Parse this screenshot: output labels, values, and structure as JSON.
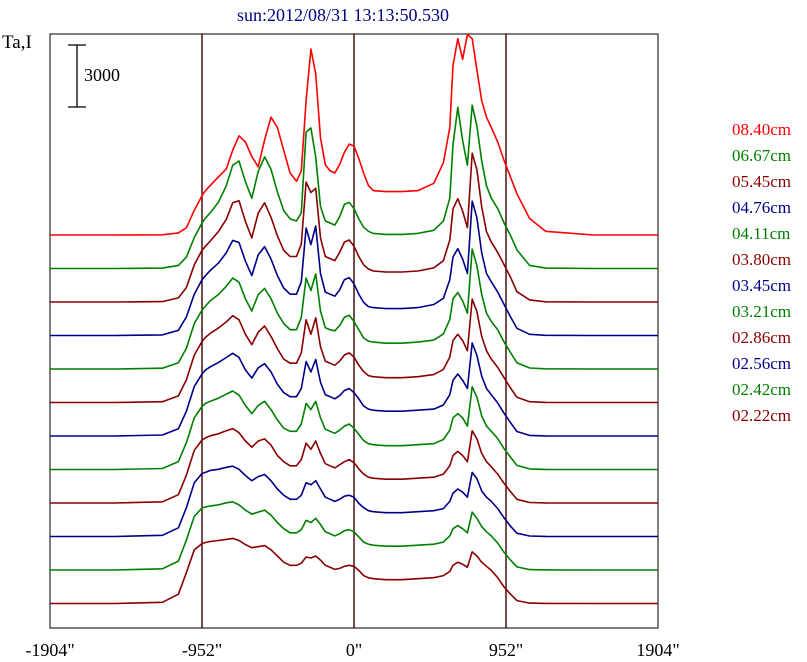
{
  "chart_data": {
    "type": "line",
    "title": "sun:2012/08/31 13:13:50.530",
    "ylabel": "Ta,I",
    "scale_bar_label": "3000",
    "scale_bar_value": 3000,
    "x_ticks": [
      "-1904\"",
      "-952\"",
      "0\"",
      "952\"",
      "1904\""
    ],
    "x_tick_values": [
      -1904,
      -952,
      0,
      952,
      1904
    ],
    "xlim": [
      -1904,
      1904
    ],
    "vertical_markers": [
      -952,
      0,
      952
    ],
    "grid": false,
    "legend_position": "right",
    "profile_x": [
      -1904,
      -1500,
      -1200,
      -1100,
      -1050,
      -1000,
      -952,
      -930,
      -900,
      -850,
      -800,
      -760,
      -720,
      -680,
      -640,
      -600,
      -560,
      -520,
      -480,
      -440,
      -400,
      -360,
      -330,
      -300,
      -270,
      -240,
      -210,
      -180,
      -150,
      -120,
      -90,
      -60,
      -30,
      0,
      30,
      60,
      90,
      120,
      200,
      300,
      400,
      500,
      560,
      600,
      620,
      650,
      680,
      710,
      740,
      770,
      800,
      830,
      860,
      900,
      940,
      980,
      1020,
      1100,
      1200,
      1500,
      1904
    ],
    "series": [
      {
        "name": "08.40cm",
        "color": "#ff0000",
        "offset": 0,
        "values": [
          0,
          0,
          10,
          100,
          350,
          1200,
          1900,
          2150,
          2400,
          2800,
          3200,
          4100,
          4800,
          4500,
          3800,
          3300,
          4600,
          5700,
          5200,
          4100,
          3000,
          2600,
          3100,
          6500,
          9000,
          7800,
          4700,
          3400,
          3100,
          3000,
          3400,
          4000,
          4400,
          4300,
          3700,
          3000,
          2400,
          2150,
          2100,
          2100,
          2150,
          2500,
          3500,
          5200,
          8200,
          9500,
          8500,
          9700,
          9500,
          8000,
          6500,
          5700,
          5200,
          4500,
          3600,
          2800,
          2000,
          800,
          180,
          0,
          0
        ]
      },
      {
        "name": "06.67cm",
        "color": "#008000",
        "offset": 1,
        "values": [
          0,
          0,
          20,
          150,
          550,
          1500,
          2200,
          2450,
          2700,
          3200,
          4000,
          5000,
          5200,
          4200,
          3400,
          4700,
          5400,
          4800,
          3700,
          2800,
          2400,
          2300,
          2700,
          6600,
          6800,
          5400,
          3000,
          2300,
          2200,
          2100,
          2500,
          3100,
          3200,
          2900,
          2400,
          2000,
          1800,
          1700,
          1650,
          1650,
          1700,
          1850,
          2300,
          3400,
          6000,
          7800,
          6200,
          5000,
          7900,
          6900,
          5200,
          4000,
          3400,
          2900,
          2200,
          1600,
          900,
          150,
          20,
          0,
          0
        ]
      },
      {
        "name": "05.45cm",
        "color": "#8b0000",
        "offset": 2,
        "values": [
          0,
          0,
          20,
          200,
          700,
          1800,
          2500,
          2700,
          2950,
          3400,
          4000,
          4800,
          4900,
          3900,
          3100,
          4300,
          4800,
          4100,
          3200,
          2500,
          2200,
          2200,
          2800,
          5800,
          5300,
          5500,
          3100,
          2200,
          2100,
          2000,
          2400,
          2900,
          3000,
          2700,
          2200,
          1800,
          1600,
          1500,
          1450,
          1450,
          1500,
          1650,
          2000,
          3000,
          4500,
          5000,
          4400,
          3600,
          7200,
          6400,
          4600,
          3400,
          2900,
          2400,
          1800,
          1200,
          500,
          100,
          10,
          0,
          0
        ]
      },
      {
        "name": "04.76cm",
        "color": "#00008b",
        "offset": 3,
        "values": [
          0,
          0,
          30,
          250,
          900,
          2000,
          2700,
          2900,
          3150,
          3500,
          4000,
          4600,
          4500,
          3600,
          2900,
          3900,
          4300,
          3700,
          2900,
          2300,
          2000,
          2000,
          2600,
          5200,
          4400,
          5300,
          3000,
          2100,
          2000,
          1900,
          2200,
          2700,
          2800,
          2500,
          2000,
          1600,
          1400,
          1350,
          1300,
          1300,
          1350,
          1500,
          1800,
          2700,
          3800,
          4200,
          3700,
          3000,
          6500,
          5700,
          4000,
          3000,
          2600,
          2100,
          1500,
          900,
          350,
          60,
          10,
          0,
          0
        ]
      },
      {
        "name": "04.11cm",
        "color": "#008000",
        "offset": 4,
        "values": [
          0,
          0,
          40,
          300,
          1000,
          2200,
          2850,
          3050,
          3300,
          3600,
          4000,
          4400,
          4200,
          3400,
          2800,
          3600,
          3900,
          3400,
          2700,
          2200,
          1900,
          1900,
          2500,
          4400,
          3800,
          4600,
          2800,
          2000,
          1900,
          1850,
          2100,
          2500,
          2600,
          2300,
          1900,
          1500,
          1350,
          1300,
          1250,
          1250,
          1300,
          1400,
          1700,
          2400,
          3400,
          3700,
          3300,
          2700,
          5800,
          5000,
          3600,
          2700,
          2300,
          1900,
          1300,
          800,
          300,
          50,
          10,
          0,
          0
        ]
      },
      {
        "name": "03.80cm",
        "color": "#8b0000",
        "offset": 5,
        "values": [
          0,
          0,
          40,
          320,
          1100,
          2300,
          2950,
          3150,
          3350,
          3600,
          3900,
          4200,
          4000,
          3300,
          2800,
          3400,
          3700,
          3200,
          2600,
          2100,
          1900,
          1900,
          2400,
          4000,
          3300,
          4100,
          2700,
          2000,
          1900,
          1800,
          2000,
          2300,
          2400,
          2200,
          1800,
          1500,
          1300,
          1250,
          1200,
          1200,
          1250,
          1350,
          1600,
          2200,
          3000,
          3300,
          3000,
          2500,
          5000,
          4400,
          3200,
          2500,
          2100,
          1700,
          1200,
          700,
          250,
          40,
          5,
          0,
          0
        ]
      },
      {
        "name": "03.45cm",
        "color": "#00008b",
        "offset": 6,
        "values": [
          0,
          0,
          50,
          350,
          1200,
          2400,
          3000,
          3200,
          3350,
          3550,
          3800,
          4000,
          3800,
          3200,
          2800,
          3300,
          3500,
          3100,
          2500,
          2100,
          1900,
          1900,
          2300,
          3600,
          3100,
          3700,
          2600,
          2000,
          1900,
          1800,
          1950,
          2200,
          2300,
          2100,
          1800,
          1450,
          1300,
          1250,
          1200,
          1200,
          1250,
          1300,
          1500,
          2000,
          2700,
          3000,
          2700,
          2300,
          4500,
          3900,
          2900,
          2300,
          2000,
          1600,
          1100,
          650,
          220,
          30,
          5,
          0,
          0
        ]
      },
      {
        "name": "03.21cm",
        "color": "#008000",
        "offset": 7,
        "values": [
          0,
          0,
          50,
          380,
          1300,
          2500,
          3050,
          3200,
          3300,
          3450,
          3650,
          3800,
          3600,
          3100,
          2700,
          3100,
          3300,
          2900,
          2400,
          2000,
          1850,
          1850,
          2200,
          3200,
          2900,
          3300,
          2500,
          1950,
          1850,
          1750,
          1900,
          2100,
          2200,
          2000,
          1700,
          1400,
          1250,
          1200,
          1150,
          1150,
          1200,
          1250,
          1450,
          1900,
          2500,
          2700,
          2500,
          2100,
          4000,
          3500,
          2600,
          2100,
          1850,
          1500,
          1000,
          600,
          200,
          30,
          5,
          0,
          0
        ]
      },
      {
        "name": "02.86cm",
        "color": "#8b0000",
        "offset": 8,
        "values": [
          0,
          0,
          60,
          400,
          1350,
          2550,
          3050,
          3150,
          3250,
          3350,
          3500,
          3600,
          3400,
          3000,
          2700,
          3000,
          3100,
          2800,
          2300,
          2000,
          1800,
          1800,
          2100,
          2900,
          2600,
          3000,
          2400,
          1900,
          1800,
          1700,
          1850,
          2000,
          2100,
          1950,
          1650,
          1400,
          1250,
          1200,
          1150,
          1150,
          1200,
          1250,
          1400,
          1800,
          2300,
          2500,
          2300,
          2000,
          3500,
          3100,
          2400,
          2000,
          1750,
          1400,
          950,
          550,
          180,
          25,
          5,
          0,
          0
        ]
      },
      {
        "name": "02.56cm",
        "color": "#00008b",
        "offset": 9,
        "values": [
          0,
          0,
          60,
          420,
          1400,
          2600,
          3050,
          3100,
          3200,
          3250,
          3350,
          3400,
          3250,
          2950,
          2700,
          2900,
          3000,
          2700,
          2300,
          2000,
          1800,
          1800,
          2000,
          2600,
          2500,
          2700,
          2300,
          1900,
          1800,
          1700,
          1800,
          1950,
          2000,
          1900,
          1600,
          1400,
          1250,
          1200,
          1150,
          1150,
          1200,
          1250,
          1350,
          1700,
          2100,
          2300,
          2150,
          1900,
          3100,
          2800,
          2200,
          1900,
          1700,
          1350,
          900,
          500,
          160,
          25,
          5,
          0,
          0
        ]
      },
      {
        "name": "02.42cm",
        "color": "#008000",
        "offset": 10,
        "values": [
          0,
          0,
          60,
          430,
          1450,
          2600,
          3000,
          3050,
          3100,
          3150,
          3250,
          3300,
          3150,
          2900,
          2700,
          2800,
          2900,
          2650,
          2300,
          2000,
          1800,
          1800,
          1950,
          2400,
          2300,
          2500,
          2200,
          1850,
          1750,
          1650,
          1750,
          1900,
          1950,
          1850,
          1600,
          1350,
          1250,
          1200,
          1150,
          1150,
          1200,
          1250,
          1350,
          1650,
          2000,
          2150,
          2000,
          1800,
          2800,
          2500,
          2100,
          1850,
          1650,
          1300,
          850,
          480,
          150,
          20,
          5,
          0,
          0
        ]
      },
      {
        "name": "02.22cm",
        "color": "#8b0000",
        "offset": 11,
        "values": [
          0,
          0,
          60,
          450,
          1500,
          2600,
          2900,
          2950,
          3000,
          3050,
          3100,
          3150,
          3050,
          2850,
          2700,
          2750,
          2800,
          2600,
          2300,
          2000,
          1850,
          1850,
          1950,
          2250,
          2200,
          2300,
          2100,
          1850,
          1750,
          1650,
          1700,
          1800,
          1850,
          1800,
          1600,
          1350,
          1250,
          1200,
          1150,
          1150,
          1200,
          1250,
          1350,
          1550,
          1850,
          2000,
          1900,
          1750,
          2500,
          2300,
          2000,
          1800,
          1600,
          1250,
          800,
          450,
          140,
          20,
          5,
          0,
          0
        ]
      }
    ]
  }
}
